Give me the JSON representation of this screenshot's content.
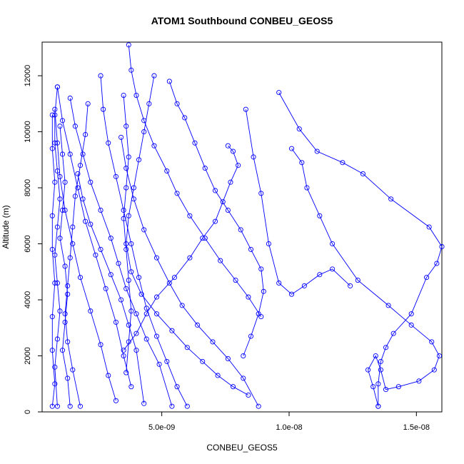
{
  "chart_data": {
    "type": "line",
    "title": "ATOM1 Southbound CONBEU_GEOS5",
    "xlabel": "CONBEU_GEOS5",
    "ylabel": "Altitude (m)",
    "xlim": [
      3e-10,
      1.6e-08
    ],
    "ylim": [
      0,
      13200
    ],
    "x_ticks": [
      5e-09,
      1e-08,
      1.5e-08
    ],
    "x_tick_labels": [
      "5.0e-09",
      "1.0e-08",
      "1.5e-08"
    ],
    "y_ticks": [
      0,
      2000,
      4000,
      6000,
      8000,
      10000,
      12000
    ],
    "y_tick_labels": [
      "0",
      "2000",
      "4000",
      "6000",
      "8000",
      "10000",
      "12000"
    ],
    "grid": false,
    "series_color": "#0000ff",
    "marker": "open-circle",
    "series": [
      {
        "x": [
          9.6e-09,
          1.04e-08,
          1.11e-08,
          1.21e-08,
          1.29e-08,
          1.4e-08,
          1.55e-08,
          1.6e-08,
          1.58e-08,
          1.54e-08,
          1.48e-08,
          1.41e-08,
          1.38e-08,
          1.36e-08,
          1.35e-08,
          1.35e-08
        ],
        "y": [
          11400,
          10100,
          9300,
          8900,
          8500,
          7600,
          6600,
          5900,
          5300,
          4800,
          3500,
          2800,
          2300,
          1800,
          1000,
          200
        ]
      },
      {
        "x": [
          1.01e-08,
          1.05e-08,
          1.07e-08,
          1.12e-08,
          1.17e-08,
          1.27e-08,
          1.39e-08,
          1.48e-08,
          1.56e-08,
          1.59e-08,
          1.57e-08,
          1.51e-08,
          1.43e-08,
          1.38e-08,
          1.36e-08,
          1.34e-08,
          1.31e-08,
          1.33e-08,
          1.35e-08
        ],
        "y": [
          9400,
          8900,
          8000,
          7000,
          6000,
          4700,
          3800,
          3100,
          2500,
          2000,
          1500,
          1100,
          900,
          800,
          1500,
          2000,
          1500,
          900,
          200
        ]
      },
      {
        "x": [
          8.3e-09,
          8.6e-09,
          8.9e-09,
          9.2e-09,
          9.6e-09,
          1.01e-08,
          1.06e-08,
          1.12e-08,
          1.17e-08,
          1.24e-08
        ],
        "y": [
          10800,
          9100,
          7800,
          6000,
          4600,
          4200,
          4500,
          4900,
          5100,
          4500
        ]
      },
      {
        "x": [
          7.6e-09,
          7.8e-09,
          8e-09,
          7.7e-09,
          7.4e-09,
          7.1e-09,
          6.6e-09,
          6.1e-09,
          5.5e-09,
          4.8e-09,
          4.4e-09,
          4e-09,
          3.5e-09
        ],
        "y": [
          9500,
          9300,
          8800,
          8200,
          7500,
          6800,
          6200,
          5500,
          4800,
          4100,
          3500,
          2800,
          2200
        ]
      },
      {
        "x": [
          5.3e-09,
          5.6e-09,
          5.9e-09,
          6.3e-09,
          6.7e-09,
          7.1e-09,
          7.6e-09,
          8.1e-09,
          8.5e-09,
          8.9e-09,
          9e-09,
          8.8e-09,
          8.5e-09,
          8.2e-09
        ],
        "y": [
          11800,
          11000,
          10500,
          9600,
          8700,
          7900,
          7200,
          6500,
          5800,
          5100,
          4300,
          3500,
          2700,
          2000
        ]
      },
      {
        "x": [
          3.7e-09,
          3.8e-09,
          4e-09,
          4.3e-09,
          4.7e-09,
          5.2e-09,
          5.6e-09,
          6.1e-09,
          6.7e-09,
          7.3e-09,
          7.9e-09,
          8.4e-09,
          8.9e-09
        ],
        "y": [
          13100,
          12200,
          11300,
          10400,
          9500,
          8600,
          7800,
          7000,
          6200,
          5400,
          4700,
          4100,
          3400
        ]
      },
      {
        "x": [
          4.7e-09,
          4.5e-09,
          4.3e-09,
          4.1e-09,
          3.9e-09,
          3.7e-09,
          3.6e-09,
          3.8e-09,
          4.2e-09,
          4.8e-09,
          5.4e-09,
          6e-09,
          6.6e-09,
          7.2e-09,
          7.8e-09,
          8.4e-09
        ],
        "y": [
          12000,
          11000,
          10000,
          9000,
          8000,
          7000,
          6000,
          5000,
          4200,
          3500,
          2900,
          2300,
          1800,
          1300,
          900,
          600
        ]
      },
      {
        "x": [
          3.4e-09,
          3.6e-09,
          3.9e-09,
          4.3e-09,
          4.8e-09,
          5.3e-09,
          5.8e-09,
          6.4e-09,
          7e-09,
          7.6e-09,
          8.2e-09,
          8.8e-09
        ],
        "y": [
          9800,
          8700,
          7600,
          6500,
          5500,
          4600,
          3800,
          3100,
          2500,
          1900,
          1200,
          200
        ]
      },
      {
        "x": [
          2.6e-09,
          2.7e-09,
          2.9e-09,
          3.2e-09,
          3.5e-09,
          3.8e-09,
          4.1e-09,
          4.4e-09,
          4.8e-09,
          5.2e-09,
          5.6e-09,
          6e-09
        ],
        "y": [
          12000,
          10800,
          9600,
          8400,
          7200,
          6000,
          4800,
          3700,
          2700,
          1800,
          900,
          200
        ]
      },
      {
        "x": [
          1.4e-09,
          1.6e-09,
          1.9e-09,
          2.2e-09,
          2.6e-09,
          3e-09,
          3.3e-09,
          3.6e-09,
          4e-09,
          4.4e-09,
          4.9e-09,
          5.4e-09
        ],
        "y": [
          11200,
          10200,
          9200,
          8200,
          7200,
          6200,
          5300,
          4400,
          3500,
          2600,
          1700,
          200
        ]
      },
      {
        "x": [
          2.1e-09,
          2e-09,
          1.8e-09,
          1.6e-09,
          1.5e-09,
          1.4e-09,
          1.3e-09,
          1.2e-09,
          1.3e-09,
          1.5e-09,
          1.8e-09
        ],
        "y": [
          11000,
          9900,
          8800,
          7700,
          6600,
          5500,
          4500,
          3500,
          2500,
          1500,
          200
        ]
      },
      {
        "x": [
          1.7e-09,
          1.9e-09,
          2.2e-09,
          2.6e-09,
          3e-09,
          3.4e-09,
          3.7e-09,
          4e-09,
          4.3e-09
        ],
        "y": [
          8500,
          7600,
          6700,
          5800,
          4900,
          4000,
          3100,
          2200,
          300
        ]
      },
      {
        "x": [
          9e-10,
          1.1e-09,
          1.4e-09,
          1.7e-09,
          2e-09,
          2.4e-09,
          2.8e-09,
          3.2e-09,
          3.5e-09,
          3.8e-09
        ],
        "y": [
          11600,
          10400,
          9200,
          8000,
          6800,
          5600,
          4400,
          3200,
          2000,
          900
        ]
      },
      {
        "x": [
          8e-10,
          9e-10,
          1e-09,
          1.2e-09,
          1.5e-09,
          1.8e-09,
          2.2e-09,
          2.6e-09,
          2.9e-09,
          3.2e-09
        ],
        "y": [
          10800,
          9600,
          8400,
          7200,
          6000,
          4800,
          3600,
          2400,
          1300,
          400
        ]
      },
      {
        "x": [
          9e-10,
          8e-10,
          8e-10,
          9e-10,
          1e-09,
          9e-10,
          8e-10,
          9e-10,
          1e-09,
          9e-10,
          8e-10,
          9e-10
        ],
        "y": [
          11600,
          10600,
          9600,
          8600,
          7600,
          6600,
          5600,
          4600,
          3600,
          2600,
          1600,
          200
        ]
      },
      {
        "x": [
          1e-09,
          1.1e-09,
          1.2e-09,
          1.1e-09,
          1e-09,
          1.2e-09,
          1.3e-09,
          1.2e-09,
          1.1e-09,
          1.3e-09,
          1.4e-09
        ],
        "y": [
          10200,
          9200,
          8200,
          7200,
          6200,
          5200,
          4200,
          3200,
          2200,
          1200,
          200
        ]
      },
      {
        "x": [
          7e-10,
          7e-10,
          8e-10,
          7e-10,
          7e-10,
          8e-10,
          7e-10,
          7e-10,
          8e-10,
          7e-10
        ],
        "y": [
          10600,
          9400,
          8200,
          7000,
          5800,
          4600,
          3400,
          2200,
          1000,
          200
        ]
      },
      {
        "x": [
          3.5e-09,
          3.6e-09,
          3.7e-09,
          3.6e-09,
          3.5e-09,
          3.6e-09,
          3.7e-09,
          3.8e-09,
          3.7e-09,
          3.6e-09
        ],
        "y": [
          11300,
          10200,
          9100,
          8000,
          6900,
          5800,
          4700,
          3600,
          2500,
          1400
        ]
      }
    ]
  }
}
